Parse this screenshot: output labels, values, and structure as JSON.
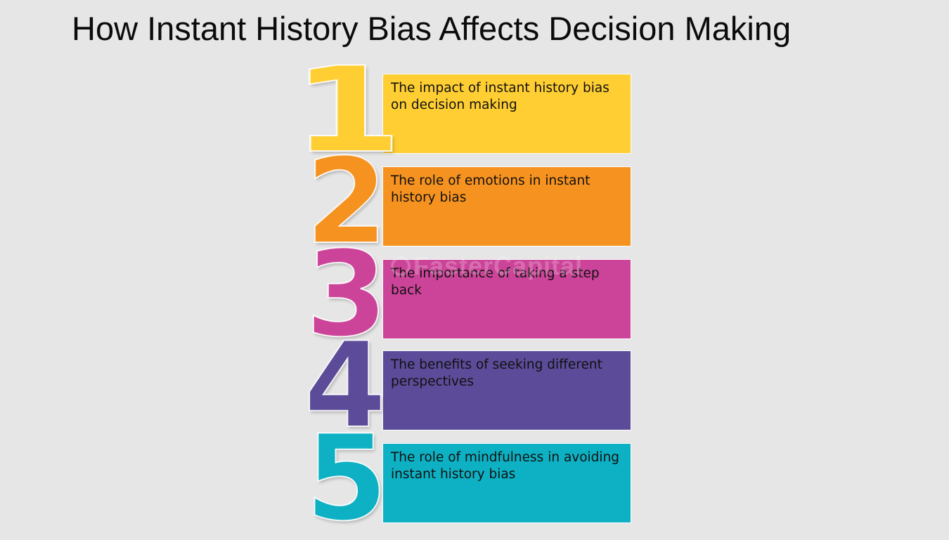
{
  "title": "How Instant History Bias Affects Decision Making",
  "watermark": "FasterCapital",
  "steps": [
    {
      "number": "1",
      "text": "The impact of instant history bias on decision making",
      "color": "#fece33"
    },
    {
      "number": "2",
      "text": "The role of emotions in instant history bias",
      "color": "#f69320"
    },
    {
      "number": "3",
      "text": "The importance of taking a step back",
      "color": "#cc4499"
    },
    {
      "number": "4",
      "text": "The benefits of seeking different perspectives",
      "color": "#5c4b98"
    },
    {
      "number": "5",
      "text": "The role of mindfulness in avoiding instant history bias",
      "color": "#0db1c3"
    }
  ]
}
